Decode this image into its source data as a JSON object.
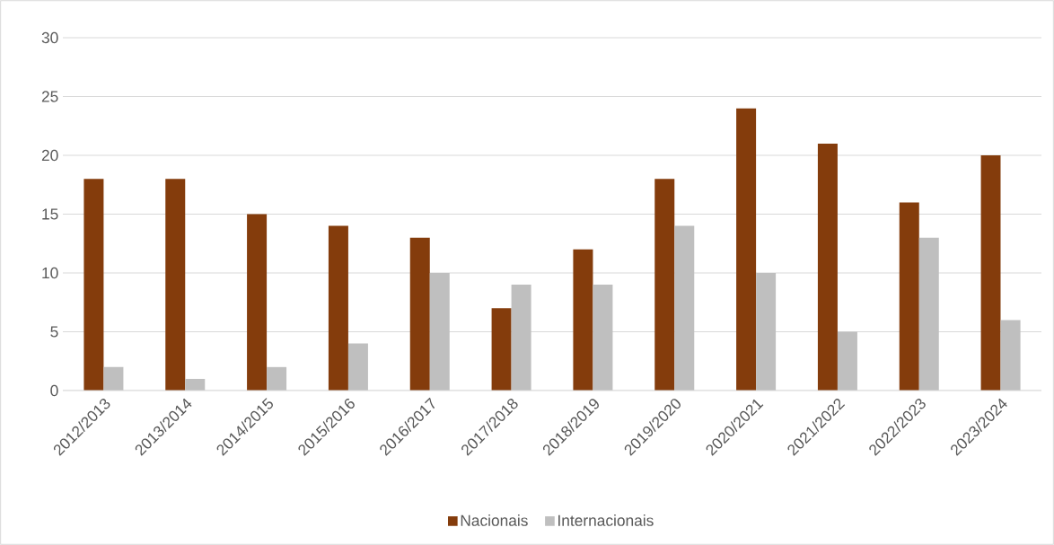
{
  "chart_data": {
    "type": "bar",
    "categories": [
      "2012/2013",
      "2013/2014",
      "2014/2015",
      "2015/2016",
      "2016/2017",
      "2017/2018",
      "2018/2019",
      "2019/2020",
      "2020/2021",
      "2021/2022",
      "2022/2023",
      "2023/2024"
    ],
    "series": [
      {
        "name": "Nacionais",
        "color": "#843c0c",
        "values": [
          18,
          18,
          15,
          14,
          13,
          7,
          12,
          18,
          24,
          21,
          16,
          20
        ]
      },
      {
        "name": "Internacionais",
        "color": "#bfbfbf",
        "values": [
          2,
          1,
          2,
          4,
          10,
          9,
          9,
          14,
          10,
          5,
          13,
          6
        ]
      }
    ],
    "ylim": [
      0,
      30
    ],
    "yticks": [
      0,
      5,
      10,
      15,
      20,
      25,
      30
    ],
    "grid": "y",
    "legend": "bottom"
  }
}
